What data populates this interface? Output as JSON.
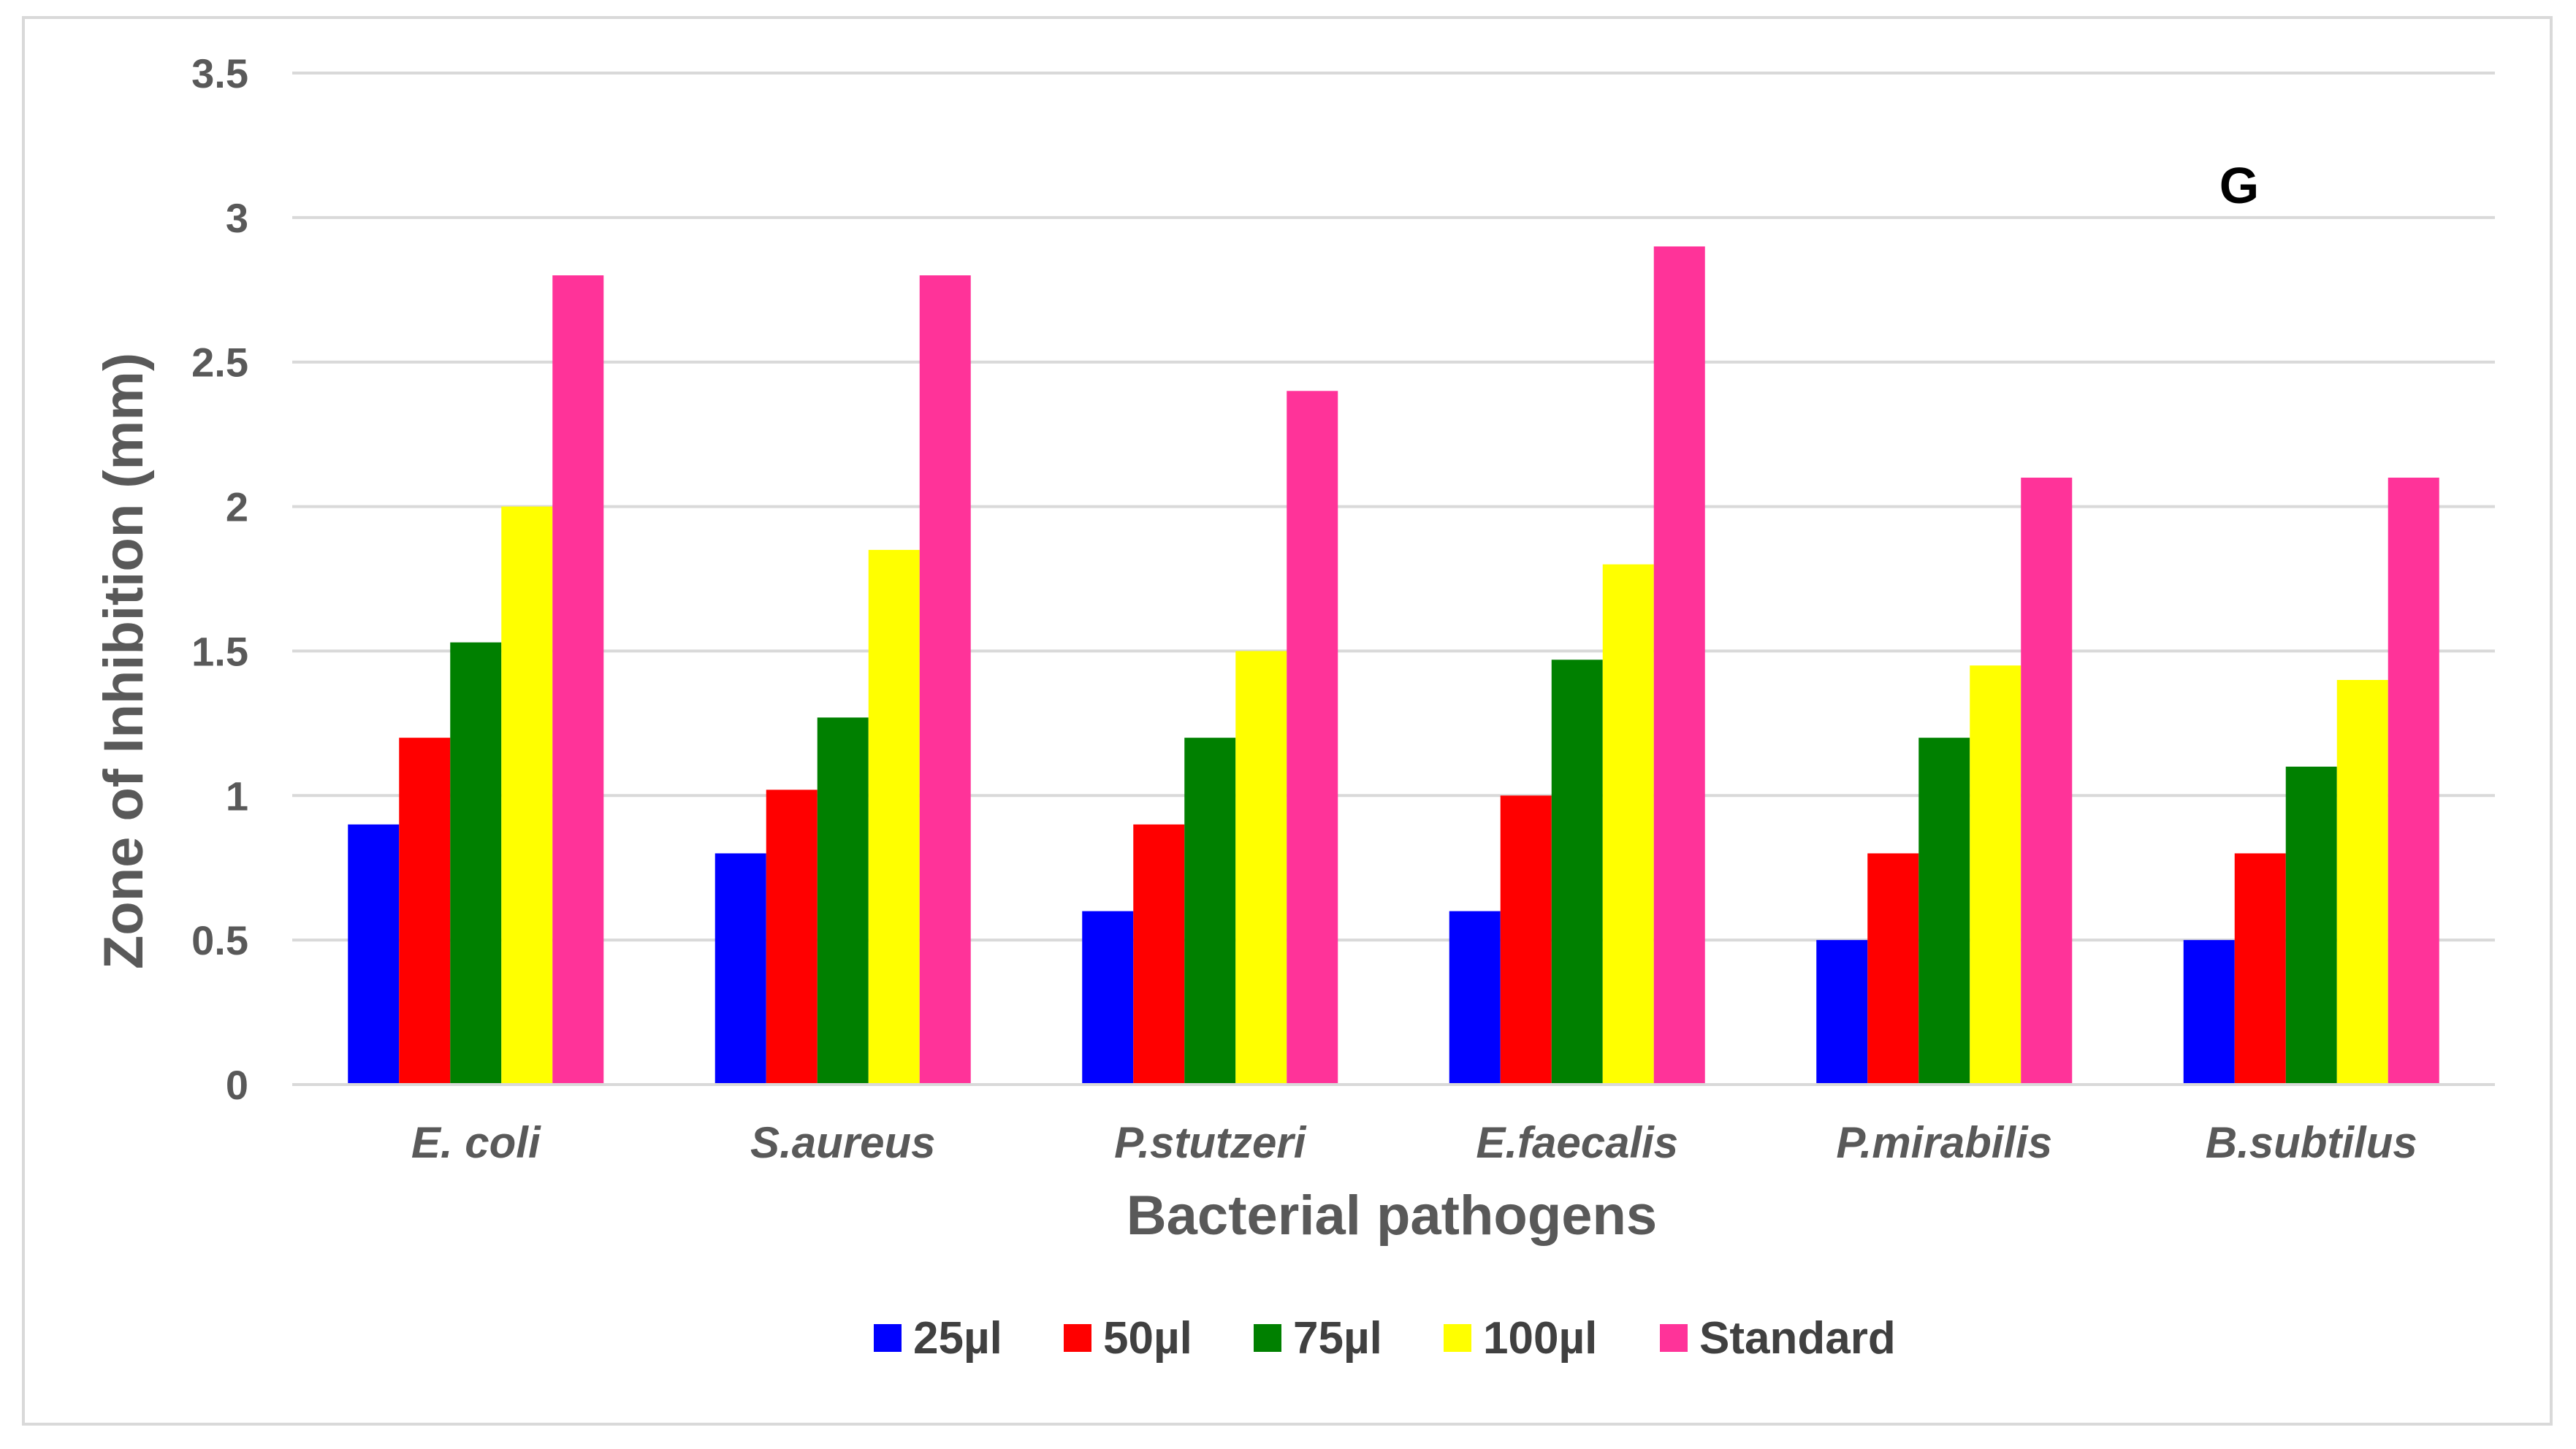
{
  "chart_data": {
    "type": "bar",
    "annotation": "G",
    "xlabel": "Bacterial pathogens",
    "ylabel": "Zone of Inhibition (mm)",
    "ylim": [
      0,
      3.5
    ],
    "yticks": [
      0,
      0.5,
      1,
      1.5,
      2,
      2.5,
      3,
      3.5
    ],
    "grid": true,
    "legend_position": "bottom",
    "categories": [
      "E. coli",
      "S.aureus",
      "P.stutzeri",
      "E.faecalis",
      "P.mirabilis",
      "B.subtilus"
    ],
    "series": [
      {
        "name": "25µl",
        "color": "#0000ff",
        "values": [
          0.9,
          0.8,
          0.6,
          0.6,
          0.5,
          0.5
        ]
      },
      {
        "name": "50µl",
        "color": "#ff0000",
        "values": [
          1.2,
          1.02,
          0.9,
          1.0,
          0.8,
          0.8
        ]
      },
      {
        "name": "75µl",
        "color": "#008000",
        "values": [
          1.53,
          1.27,
          1.2,
          1.47,
          1.2,
          1.1
        ]
      },
      {
        "name": "100µl",
        "color": "#ffff00",
        "values": [
          2.0,
          1.85,
          1.5,
          1.8,
          1.45,
          1.4
        ]
      },
      {
        "name": "Standard",
        "color": "#ff3399",
        "values": [
          2.8,
          2.8,
          2.4,
          2.9,
          2.1,
          2.1
        ]
      }
    ]
  }
}
